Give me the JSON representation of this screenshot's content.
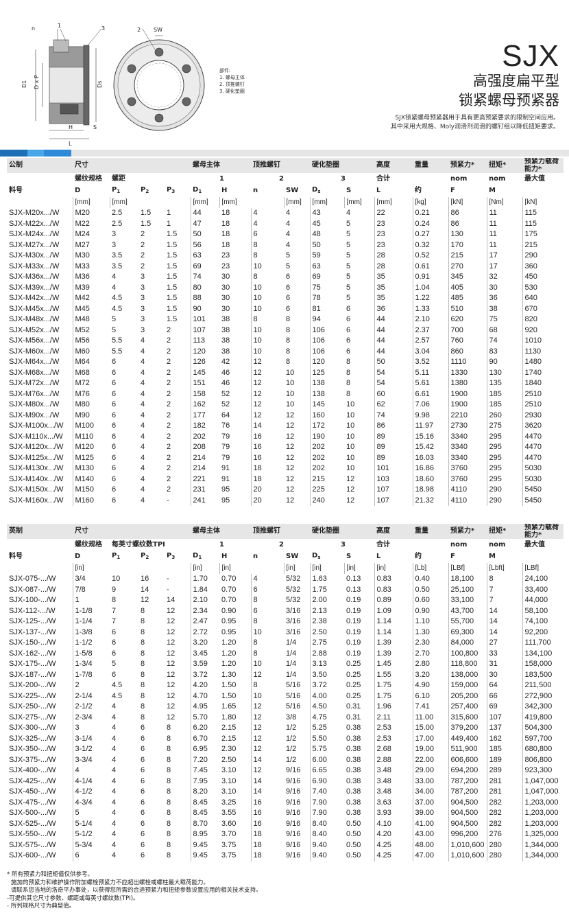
{
  "drawing": {
    "labels": {
      "n": "n",
      "one": "1",
      "three": "3",
      "two": "2",
      "sw": "SW",
      "d1": "D1",
      "dxp": "D x P",
      "ds": "Ds",
      "h": "H",
      "s": "S",
      "l": "L"
    }
  },
  "legend": {
    "title": "部件:",
    "items": [
      "1. 螺母主体",
      "2. 顶推螺钉",
      "3. 硬化垫圈"
    ]
  },
  "header": {
    "code": "SJX",
    "subtitle1": "高强度扁平型",
    "subtitle2": "锁紧螺母预紧器",
    "desc1": "SJX锁紧螺母预紧器用于具有更高预紧要求的限制空间应用。",
    "desc2": "其中采用大规格、Moly润滑剂润滑的螺钉组以降低扭矩要求。"
  },
  "colors": {
    "bar_blue_dark": "#1e6fb5",
    "bar_blue": "#2f8ad8",
    "bar_blue_light": "#49a7e8",
    "bar_grey": "#e6e6e6"
  },
  "metric": {
    "h": {
      "sys": "公制",
      "size": "尺寸",
      "body": "螺母主体",
      "screw": "顶推螺钉",
      "washer": "硬化垫圈",
      "height": "高度",
      "weight": "重量",
      "preload": "预紧力*",
      "torque": "扭矩*",
      "cap": "预紧力载荷能力*",
      "thread": "螺纹规格",
      "pitch": "螺距",
      "n1": "1",
      "n2": "2",
      "n3": "3",
      "total": "合计",
      "nom": "nom",
      "nom2": "nom",
      "max": "最大值",
      "part": "料号",
      "D": "D",
      "P": "P",
      "n": "n",
      "SW": "SW",
      "S": "S",
      "L": "L",
      "approx": "约",
      "F": "F",
      "M": "M",
      "u_mm": "[mm]",
      "u_kg": "[kg]",
      "u_kN": "[kN]",
      "u_Nm": "[Nm]"
    },
    "rows": [
      [
        "SJX-M20x.../W",
        "M20",
        "2.5",
        "1.5",
        "1",
        "44",
        "18",
        "4",
        "4",
        "43",
        "4",
        "22",
        "0.21",
        "86",
        "11",
        "115"
      ],
      [
        "SJX-M22x.../W",
        "M22",
        "2.5",
        "1.5",
        "1",
        "47",
        "18",
        "4",
        "4",
        "45",
        "5",
        "23",
        "0.24",
        "86",
        "11",
        "115"
      ],
      [
        "SJX-M24x.../W",
        "M24",
        "3",
        "2",
        "1.5",
        "50",
        "18",
        "6",
        "4",
        "48",
        "5",
        "23",
        "0.27",
        "130",
        "11",
        "175"
      ],
      [
        "SJX-M27x.../W",
        "M27",
        "3",
        "2",
        "1.5",
        "56",
        "18",
        "8",
        "4",
        "50",
        "5",
        "23",
        "0.32",
        "170",
        "11",
        "215"
      ],
      [
        "SJX-M30x.../W",
        "M30",
        "3.5",
        "2",
        "1.5",
        "63",
        "23",
        "8",
        "5",
        "59",
        "5",
        "28",
        "0.52",
        "215",
        "17",
        "290"
      ],
      [
        "SJX-M33x.../W",
        "M33",
        "3.5",
        "2",
        "1.5",
        "69",
        "23",
        "10",
        "5",
        "63",
        "5",
        "28",
        "0.61",
        "270",
        "17",
        "360"
      ],
      [
        "SJX-M36x.../W",
        "M36",
        "4",
        "3",
        "1.5",
        "74",
        "30",
        "8",
        "6",
        "69",
        "5",
        "35",
        "0.91",
        "345",
        "32",
        "450"
      ],
      [
        "SJX-M39x.../W",
        "M39",
        "4",
        "3",
        "1.5",
        "80",
        "30",
        "10",
        "6",
        "75",
        "5",
        "35",
        "1.04",
        "405",
        "30",
        "530"
      ],
      [
        "SJX-M42x.../W",
        "M42",
        "4.5",
        "3",
        "1.5",
        "88",
        "30",
        "10",
        "6",
        "78",
        "5",
        "35",
        "1.22",
        "485",
        "36",
        "640"
      ],
      [
        "SJX-M45x.../W",
        "M45",
        "4.5",
        "3",
        "1.5",
        "90",
        "30",
        "10",
        "6",
        "81",
        "6",
        "36",
        "1.33",
        "510",
        "38",
        "670"
      ],
      [
        "SJX-M48x.../W",
        "M48",
        "5",
        "3",
        "1.5",
        "101",
        "38",
        "8",
        "8",
        "94",
        "6",
        "44",
        "2.10",
        "620",
        "75",
        "820"
      ],
      [
        "SJX-M52x.../W",
        "M52",
        "5",
        "3",
        "2",
        "107",
        "38",
        "10",
        "8",
        "106",
        "6",
        "44",
        "2.37",
        "700",
        "68",
        "920"
      ],
      [
        "SJX-M56x.../W",
        "M56",
        "5.5",
        "4",
        "2",
        "113",
        "38",
        "10",
        "8",
        "106",
        "6",
        "44",
        "2.57",
        "760",
        "74",
        "1010"
      ],
      [
        "SJX-M60x.../W",
        "M60",
        "5.5",
        "4",
        "2",
        "120",
        "38",
        "10",
        "8",
        "106",
        "6",
        "44",
        "3.04",
        "860",
        "83",
        "1130"
      ],
      [
        "SJX-M64x.../W",
        "M64",
        "6",
        "4",
        "2",
        "126",
        "42",
        "12",
        "8",
        "120",
        "8",
        "50",
        "3.52",
        "1110",
        "90",
        "1480"
      ],
      [
        "SJX-M68x.../W",
        "M68",
        "6",
        "4",
        "2",
        "145",
        "46",
        "12",
        "10",
        "125",
        "8",
        "54",
        "5.11",
        "1330",
        "130",
        "1740"
      ],
      [
        "SJX-M72x.../W",
        "M72",
        "6",
        "4",
        "2",
        "151",
        "46",
        "12",
        "10",
        "138",
        "8",
        "54",
        "5.61",
        "1380",
        "135",
        "1840"
      ],
      [
        "SJX-M76x.../W",
        "M76",
        "6",
        "4",
        "2",
        "158",
        "52",
        "12",
        "10",
        "138",
        "8",
        "60",
        "6.61",
        "1900",
        "185",
        "2510"
      ],
      [
        "SJX-M80x.../W",
        "M80",
        "6",
        "4",
        "2",
        "162",
        "52",
        "12",
        "10",
        "145",
        "10",
        "62",
        "7.06",
        "1900",
        "185",
        "2510"
      ],
      [
        "SJX-M90x.../W",
        "M90",
        "6",
        "4",
        "2",
        "177",
        "64",
        "12",
        "12",
        "160",
        "10",
        "74",
        "9.98",
        "2210",
        "260",
        "2930"
      ],
      [
        "SJX-M100x.../W",
        "M100",
        "6",
        "4",
        "2",
        "182",
        "76",
        "14",
        "12",
        "172",
        "10",
        "86",
        "11.97",
        "2730",
        "275",
        "3620"
      ],
      [
        "SJX-M110x.../W",
        "M110",
        "6",
        "4",
        "2",
        "202",
        "79",
        "16",
        "12",
        "190",
        "10",
        "89",
        "15.16",
        "3340",
        "295",
        "4470"
      ],
      [
        "SJX-M120x.../W",
        "M120",
        "6",
        "4",
        "2",
        "208",
        "79",
        "16",
        "12",
        "202",
        "10",
        "89",
        "15.42",
        "3340",
        "295",
        "4470"
      ],
      [
        "SJX-M125x.../W",
        "M125",
        "6",
        "4",
        "2",
        "214",
        "79",
        "16",
        "12",
        "202",
        "10",
        "89",
        "16.03",
        "3340",
        "295",
        "4470"
      ],
      [
        "SJX-M130x.../W",
        "M130",
        "6",
        "4",
        "2",
        "214",
        "91",
        "18",
        "12",
        "202",
        "10",
        "101",
        "16.86",
        "3760",
        "295",
        "5030"
      ],
      [
        "SJX-M140x.../W",
        "M140",
        "6",
        "4",
        "2",
        "221",
        "91",
        "18",
        "12",
        "215",
        "12",
        "103",
        "18.60",
        "3760",
        "295",
        "5030"
      ],
      [
        "SJX-M150x.../W",
        "M150",
        "6",
        "4",
        "2",
        "231",
        "95",
        "20",
        "12",
        "225",
        "12",
        "107",
        "18.98",
        "4110",
        "290",
        "5450"
      ],
      [
        "SJX-M160x.../W",
        "M160",
        "6",
        "4",
        "-",
        "241",
        "95",
        "20",
        "12",
        "240",
        "12",
        "107",
        "21.32",
        "4110",
        "290",
        "5450"
      ]
    ]
  },
  "imperial": {
    "h": {
      "sys": "英制",
      "size": "尺寸",
      "body": "螺母主体",
      "screw": "顶推螺钉",
      "washer": "硬化垫圈",
      "height": "高度",
      "weight": "重量",
      "preload": "预紧力*",
      "torque": "扭矩*",
      "cap": "预紧力载荷能力*",
      "thread": "螺纹规格",
      "tpi": "每英寸螺纹数TPI",
      "n1": "1",
      "n2": "2",
      "n3": "3",
      "total": "合计",
      "nom": "nom",
      "nom2": "nom",
      "max": "最大值",
      "part": "料号",
      "D": "D",
      "P": "P",
      "n": "n",
      "SW": "SW",
      "S": "S",
      "L": "L",
      "approx": "约",
      "F": "F",
      "M": "M",
      "u_in": "[in]",
      "u_lb": "[Lb]",
      "u_lbf": "[LBf]",
      "u_lbft": "[Lbft]",
      "u_lbf2": "[LBf]"
    },
    "rows": [
      [
        "SJX-075-.../W",
        "3/4",
        "10",
        "16",
        "-",
        "1.70",
        "0.70",
        "4",
        "5/32",
        "1.63",
        "0.13",
        "0.83",
        "0.40",
        "18,100",
        "8",
        "24,100"
      ],
      [
        "SJX-087-.../W",
        "7/8",
        "9",
        "14",
        "-",
        "1.84",
        "0.70",
        "6",
        "5/32",
        "1.75",
        "0.13",
        "0.83",
        "0.50",
        "25,100",
        "7",
        "33,400"
      ],
      [
        "SJX-100-.../W",
        "1",
        "8",
        "12",
        "14",
        "2.10",
        "0.70",
        "8",
        "5/32",
        "2.00",
        "0.19",
        "0.89",
        "0.60",
        "33,100",
        "7",
        "44,000"
      ],
      [
        "SJX-112-.../W",
        "1-1/8",
        "7",
        "8",
        "12",
        "2.34",
        "0.90",
        "6",
        "3/16",
        "2.13",
        "0.19",
        "1.09",
        "0.90",
        "43,700",
        "14",
        "58,100"
      ],
      [
        "SJX-125-.../W",
        "1-1/4",
        "7",
        "8",
        "12",
        "2.47",
        "0.95",
        "8",
        "3/16",
        "2.38",
        "0.19",
        "1.14",
        "1.10",
        "55,700",
        "14",
        "74,100"
      ],
      [
        "SJX-137-.../W",
        "1-3/8",
        "6",
        "8",
        "12",
        "2.72",
        "0.95",
        "10",
        "3/16",
        "2.50",
        "0.19",
        "1.14",
        "1.30",
        "69,300",
        "14",
        "92,200"
      ],
      [
        "SJX-150-.../W",
        "1-1/2",
        "6",
        "8",
        "12",
        "3.20",
        "1.20",
        "8",
        "1/4",
        "2.75",
        "0.19",
        "1.39",
        "2.30",
        "84,000",
        "27",
        "111,700"
      ],
      [
        "SJX-162-.../W",
        "1-5/8",
        "6",
        "8",
        "12",
        "3.45",
        "1.20",
        "8",
        "1/4",
        "2.88",
        "0.19",
        "1.39",
        "2.70",
        "100,800",
        "33",
        "134,100"
      ],
      [
        "SJX-175-.../W",
        "1-3/4",
        "5",
        "8",
        "12",
        "3.59",
        "1.20",
        "10",
        "1/4",
        "3.13",
        "0.25",
        "1.45",
        "2.80",
        "118,800",
        "31",
        "158,000"
      ],
      [
        "SJX-187-.../W",
        "1-7/8",
        "6",
        "8",
        "12",
        "3.72",
        "1.30",
        "12",
        "1/4",
        "3.50",
        "0.25",
        "1.55",
        "3.20",
        "138,000",
        "30",
        "183,500"
      ],
      [
        "SJX-200-.../W",
        "2",
        "4.5",
        "8",
        "12",
        "4.20",
        "1.50",
        "8",
        "5/16",
        "3.72",
        "0.25",
        "1.75",
        "4.90",
        "159,000",
        "64",
        "211,500"
      ],
      [
        "SJX-225-.../W",
        "2-1/4",
        "4.5",
        "8",
        "12",
        "4.70",
        "1.50",
        "10",
        "5/16",
        "4.00",
        "0.25",
        "1.75",
        "6.10",
        "205,200",
        "66",
        "272,900"
      ],
      [
        "SJX-250-.../W",
        "2-1/2",
        "4",
        "8",
        "12",
        "4.95",
        "1.65",
        "12",
        "5/16",
        "4.50",
        "0.31",
        "1.96",
        "7.41",
        "257,400",
        "69",
        "342,300"
      ],
      [
        "SJX-275-.../W",
        "2-3/4",
        "4",
        "8",
        "12",
        "5.70",
        "1.80",
        "12",
        "3/8",
        "4.75",
        "0.31",
        "2.11",
        "11.00",
        "315,600",
        "107",
        "419,800"
      ],
      [
        "SJX-300-.../W",
        "3",
        "4",
        "6",
        "8",
        "6.20",
        "2.15",
        "12",
        "1/2",
        "5.25",
        "0.38",
        "2.53",
        "15.00",
        "379,200",
        "137",
        "504,300"
      ],
      [
        "SJX-325-.../W",
        "3-1/4",
        "4",
        "6",
        "8",
        "6.70",
        "2.15",
        "12",
        "1/2",
        "5.50",
        "0.38",
        "2.53",
        "17.00",
        "449,400",
        "162",
        "597,700"
      ],
      [
        "SJX-350-.../W",
        "3-1/2",
        "4",
        "6",
        "8",
        "6.95",
        "2.30",
        "12",
        "1/2",
        "5.75",
        "0.38",
        "2.68",
        "19.00",
        "511,900",
        "185",
        "680,800"
      ],
      [
        "SJX-375-.../W",
        "3-3/4",
        "4",
        "6",
        "8",
        "7.20",
        "2.50",
        "14",
        "1/2",
        "6.00",
        "0.38",
        "2.88",
        "22.00",
        "606,600",
        "189",
        "806,800"
      ],
      [
        "SJX-400-.../W",
        "4",
        "4",
        "6",
        "8",
        "7.45",
        "3.10",
        "12",
        "9/16",
        "6.65",
        "0.38",
        "3.48",
        "29.00",
        "694,200",
        "289",
        "923,300"
      ],
      [
        "SJX-425-.../W",
        "4-1/4",
        "4",
        "6",
        "8",
        "7.95",
        "3.10",
        "14",
        "9/16",
        "6.90",
        "0.38",
        "3.48",
        "33.00",
        "787,200",
        "281",
        "1,047,000"
      ],
      [
        "SJX-450-.../W",
        "4-1/2",
        "4",
        "6",
        "8",
        "8.20",
        "3.10",
        "14",
        "9/16",
        "7.40",
        "0.38",
        "3.48",
        "34.00",
        "787,200",
        "281",
        "1,047,000"
      ],
      [
        "SJX-475-.../W",
        "4-3/4",
        "4",
        "6",
        "8",
        "8.45",
        "3.25",
        "16",
        "9/16",
        "7.90",
        "0.38",
        "3.63",
        "37.00",
        "904,500",
        "282",
        "1,203,000"
      ],
      [
        "SJX-500-.../W",
        "5",
        "4",
        "6",
        "8",
        "8.45",
        "3.55",
        "16",
        "9/16",
        "7.90",
        "0.38",
        "3.93",
        "39.00",
        "904,500",
        "282",
        "1,203,000"
      ],
      [
        "SJX-525-.../W",
        "5-1/4",
        "4",
        "6",
        "8",
        "8.70",
        "3.60",
        "16",
        "9/16",
        "8.40",
        "0.50",
        "4.10",
        "41.00",
        "904,500",
        "282",
        "1,203,000"
      ],
      [
        "SJX-550-.../W",
        "5-1/2",
        "4",
        "6",
        "8",
        "8.95",
        "3.70",
        "18",
        "9/16",
        "8.40",
        "0.50",
        "4.20",
        "43.00",
        "996,200",
        "276",
        "1,325,000"
      ],
      [
        "SJX-575-.../W",
        "5-3/4",
        "4",
        "6",
        "8",
        "9.45",
        "3.75",
        "18",
        "9/16",
        "9.40",
        "0.50",
        "4.25",
        "48.00",
        "1,010,600",
        "280",
        "1,344,000"
      ],
      [
        "SJX-600-.../W",
        "6",
        "4",
        "6",
        "8",
        "9.45",
        "3.75",
        "18",
        "9/16",
        "9.40",
        "0.50",
        "4.25",
        "47.00",
        "1,010,600",
        "280",
        "1,344,000"
      ]
    ]
  },
  "notes": [
    "* 所有预紧力和扭矩值仅供参考。",
    "  施加的预紧力和维护操作附加螺栓预紧力不应超出螺栓或螺柱最大载荷能力。",
    "  请联系您当地的洛奇平办事处，以获得您所需的合适预紧力和扭矩参数设置应用的相关技术支持。",
    "-可提供其它尺寸参数、螺距或每英寸螺纹数(TPI)。",
    "- 所列规格尺寸为典型值。"
  ]
}
